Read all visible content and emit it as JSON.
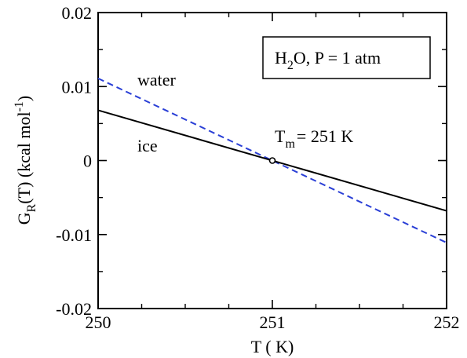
{
  "chart_data": {
    "type": "line",
    "title": "",
    "xlabel": "T ( K)",
    "ylabel": "G",
    "ylabel_sub": "R",
    "ylabel_rest": "(T) (kcal mol",
    "ylabel_sup": "-1",
    "ylabel_close": ")",
    "xlim": [
      250,
      252
    ],
    "ylim": [
      -0.02,
      0.02
    ],
    "x_ticks": [
      250,
      251,
      252
    ],
    "x_tick_labels": [
      "250",
      "251",
      "252"
    ],
    "y_ticks": [
      -0.02,
      -0.01,
      0,
      0.01,
      0.02
    ],
    "y_tick_labels": [
      "-0.02",
      "-0.01",
      "0",
      "0.01",
      "0.02"
    ],
    "grid": false,
    "series": [
      {
        "name": "water",
        "style": "dashed",
        "color": "#2a3fd6",
        "x": [
          250,
          252
        ],
        "y": [
          0.0111,
          -0.0111
        ]
      },
      {
        "name": "ice",
        "style": "solid",
        "color": "#000000",
        "x": [
          250,
          252
        ],
        "y": [
          0.0068,
          -0.0068
        ]
      }
    ],
    "marker_point": {
      "x": 251,
      "y": 0
    },
    "annotations": {
      "legend_box": {
        "main": "H",
        "sub": "2",
        "rest": "O, P = 1 atm"
      },
      "melting": {
        "main": "T",
        "sub": "m",
        "rest": "= 251 K"
      }
    }
  }
}
